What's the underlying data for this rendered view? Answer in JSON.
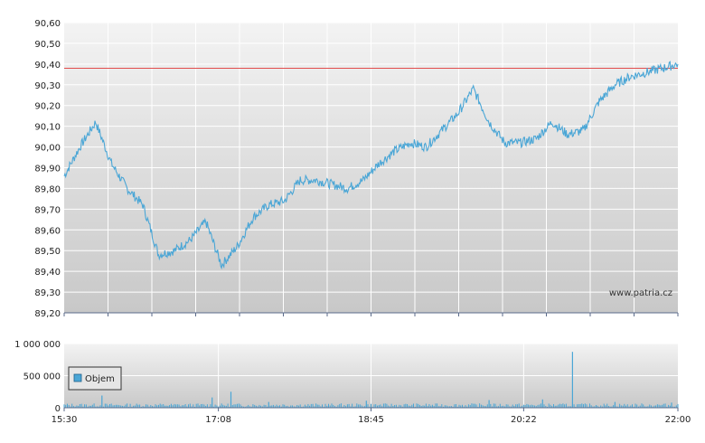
{
  "watermark": "www.patria.cz",
  "chart_data": [
    {
      "type": "line",
      "title": "",
      "ylim": [
        89.2,
        90.6
      ],
      "yticks": [
        "90,60",
        "90,50",
        "90,40",
        "90,30",
        "90,20",
        "90,10",
        "90,00",
        "89,90",
        "89,80",
        "89,70",
        "89,60",
        "89,50",
        "89,40",
        "89,30",
        "89,20"
      ],
      "reference_line": 90.38,
      "x_range": [
        "15:30",
        "22:00"
      ],
      "series": [
        {
          "x": [
            "15:30",
            "15:40",
            "15:50",
            "16:00",
            "16:10",
            "16:20",
            "16:30",
            "16:40",
            "16:50",
            "17:00",
            "17:10",
            "17:20",
            "17:30",
            "17:40",
            "17:50",
            "18:00",
            "18:10",
            "18:20",
            "18:30",
            "18:40",
            "18:50",
            "19:00",
            "19:10",
            "19:20",
            "19:30",
            "19:40",
            "19:50",
            "20:00",
            "20:10",
            "20:20",
            "20:30",
            "20:40",
            "20:50",
            "21:00",
            "21:10",
            "21:20",
            "21:30",
            "21:40",
            "21:50",
            "22:00"
          ],
          "values": [
            89.86,
            90.0,
            90.12,
            89.92,
            89.8,
            89.72,
            89.48,
            89.5,
            89.55,
            89.64,
            89.43,
            89.52,
            89.66,
            89.72,
            89.74,
            89.84,
            89.84,
            89.82,
            89.8,
            89.84,
            89.92,
            89.98,
            90.02,
            90.0,
            90.08,
            90.16,
            90.28,
            90.12,
            90.02,
            90.02,
            90.04,
            90.12,
            90.06,
            90.08,
            90.22,
            90.3,
            90.34,
            90.36,
            90.38,
            90.4
          ]
        }
      ]
    },
    {
      "type": "bar",
      "title": "",
      "ylim": [
        0,
        1000000
      ],
      "yticks": [
        "1 000 000",
        "500 000",
        "0"
      ],
      "xticks": [
        "15:30",
        "17:08",
        "18:45",
        "20:22",
        "22:00"
      ],
      "legend": [
        "Objem"
      ],
      "legend_position": "left",
      "x_range": [
        "15:30",
        "22:00"
      ],
      "spikes": [
        {
          "x": "15:54",
          "value": 190000
        },
        {
          "x": "17:04",
          "value": 160000
        },
        {
          "x": "17:16",
          "value": 250000
        },
        {
          "x": "17:40",
          "value": 90000
        },
        {
          "x": "18:42",
          "value": 110000
        },
        {
          "x": "20:00",
          "value": 120000
        },
        {
          "x": "20:34",
          "value": 130000
        },
        {
          "x": "20:53",
          "value": 870000
        },
        {
          "x": "21:20",
          "value": 90000
        },
        {
          "x": "21:56",
          "value": 80000
        }
      ],
      "baseline_volume": 45000
    }
  ],
  "colors": {
    "line": "#4aa6d6",
    "reference": "#e24c4c",
    "volume": "#4aa6d6",
    "plot_bg_top": "#f3f3f3",
    "plot_bg_bottom": "#c9c9c9",
    "grid": "#ffffff",
    "axis": "#5a6a8a"
  }
}
